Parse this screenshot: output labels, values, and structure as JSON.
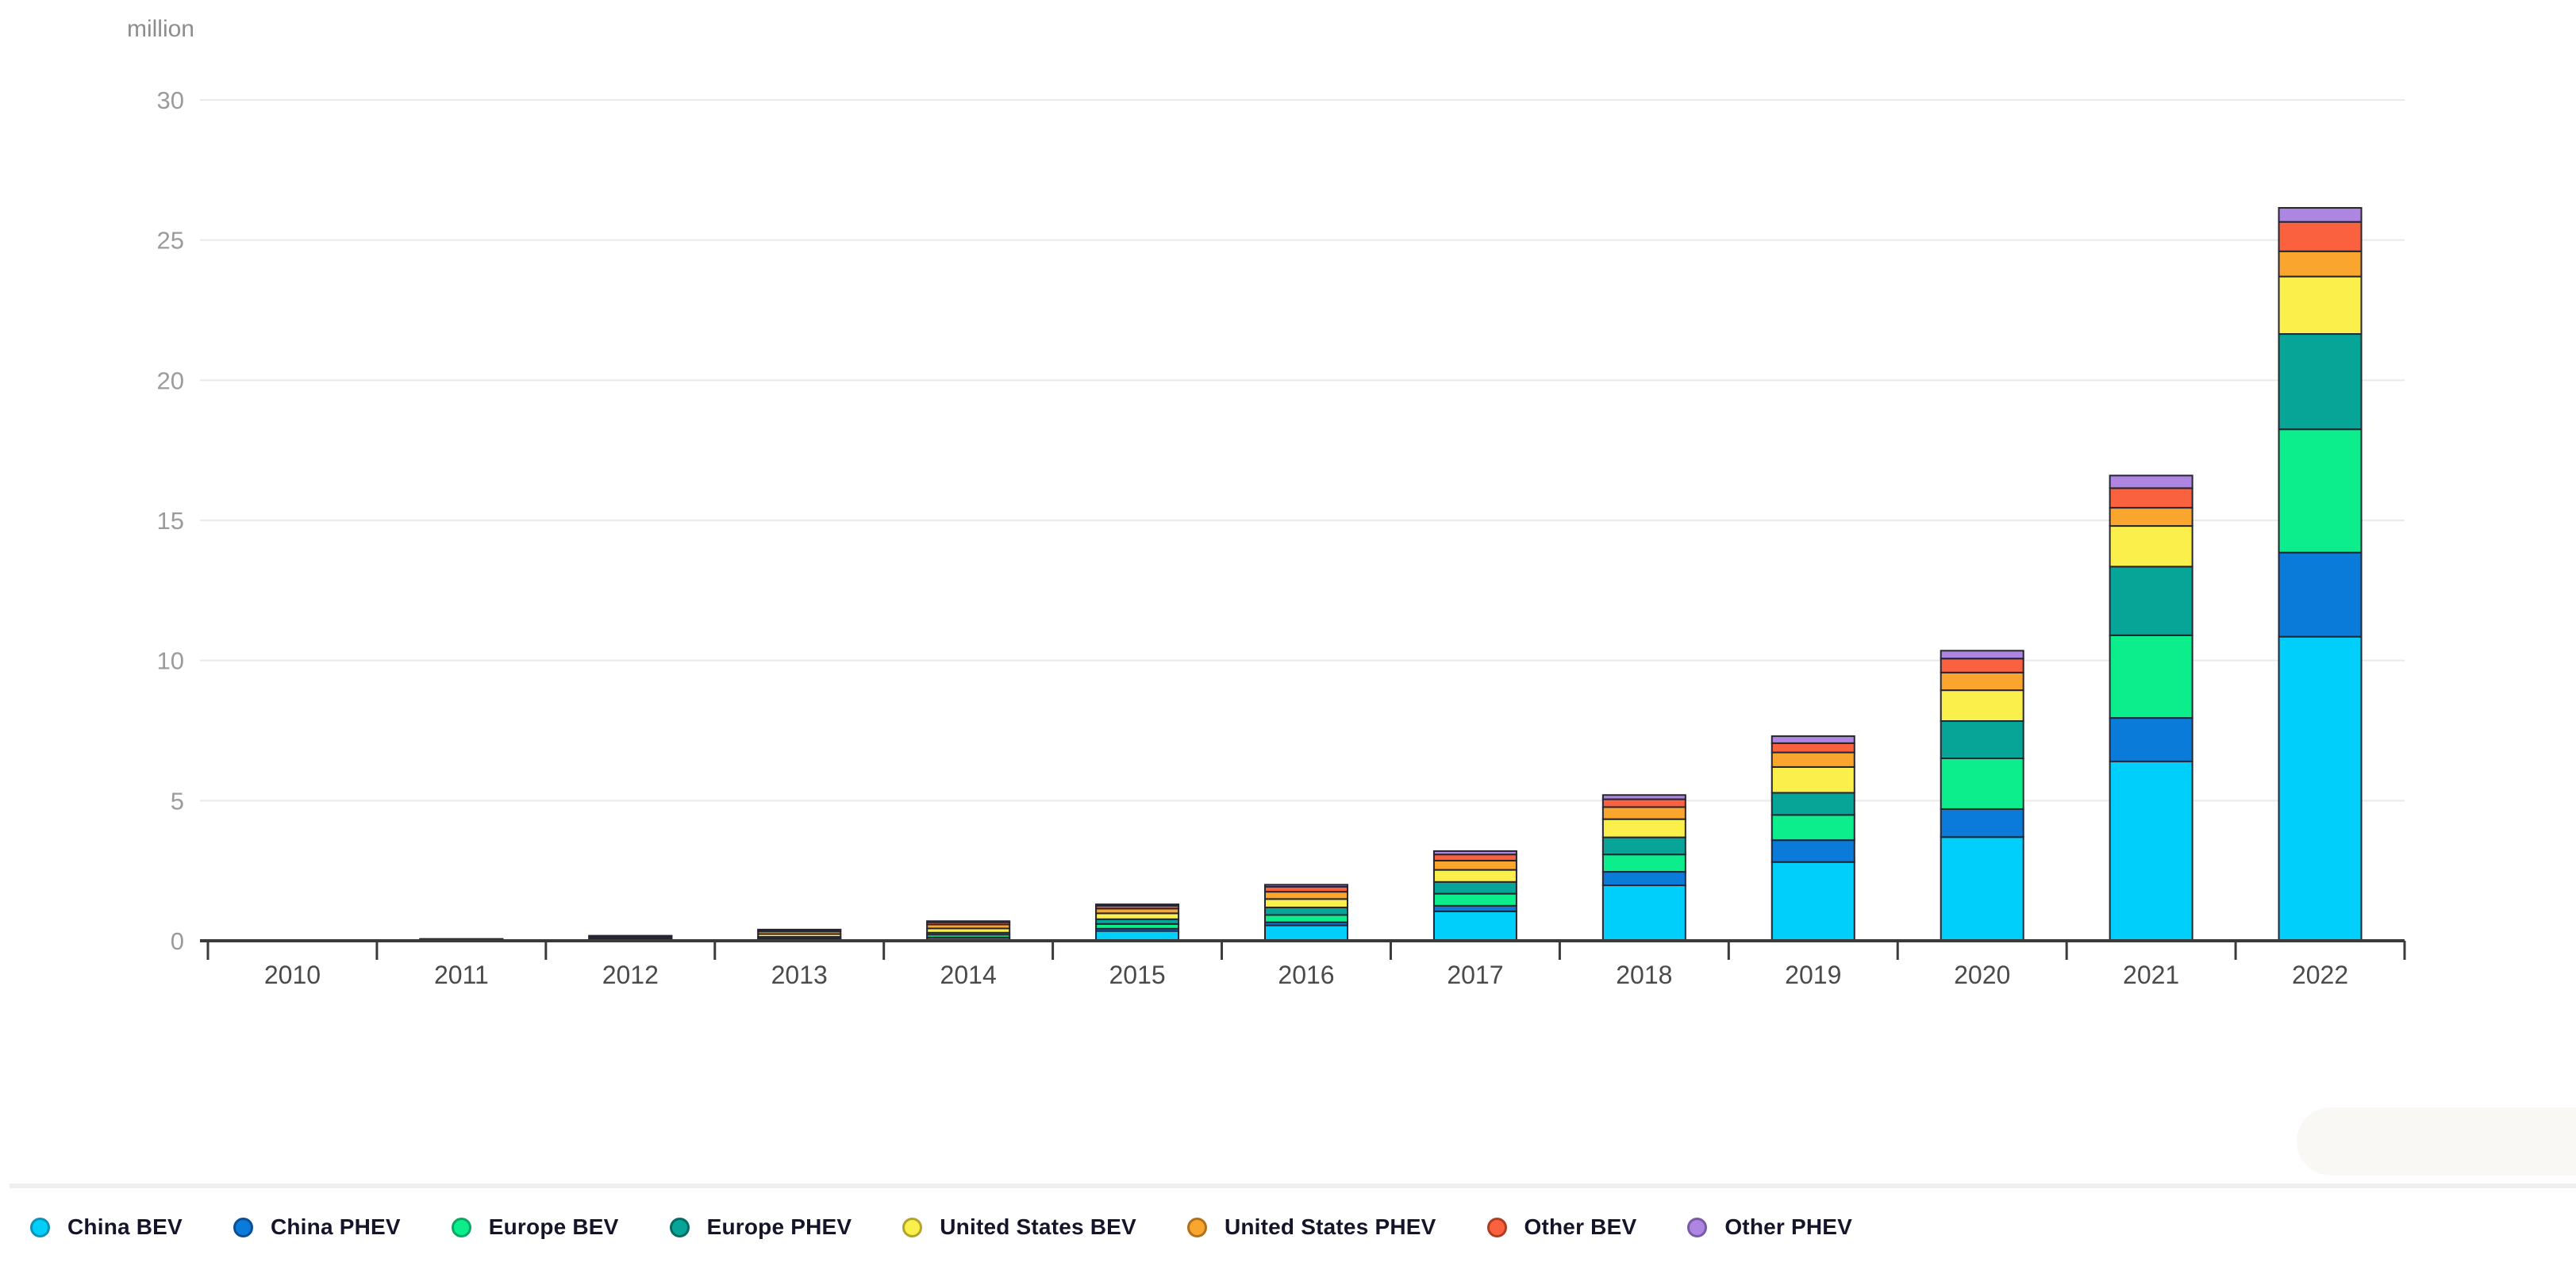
{
  "chart_data": {
    "type": "bar",
    "stacked": true,
    "title": "",
    "unit_label": "million",
    "xlabel": "",
    "ylabel": "million",
    "ylim": [
      0,
      30
    ],
    "yticks": [
      0,
      5,
      10,
      15,
      20,
      25,
      30
    ],
    "grid": true,
    "legend_position": "bottom",
    "categories": [
      "2010",
      "2011",
      "2012",
      "2013",
      "2014",
      "2015",
      "2016",
      "2017",
      "2018",
      "2019",
      "2020",
      "2021",
      "2022"
    ],
    "series": [
      {
        "name": "China BEV",
        "color": "#00CFFC",
        "border": "#0b93b5",
        "values": [
          0.01,
          0.01,
          0.02,
          0.05,
          0.1,
          0.35,
          0.55,
          1.05,
          1.98,
          2.81,
          3.7,
          6.4,
          10.85
        ]
      },
      {
        "name": "China PHEV",
        "color": "#0A7BD8",
        "border": "#0a4f96",
        "values": [
          0.0,
          0.0,
          0.0,
          0.01,
          0.02,
          0.08,
          0.11,
          0.2,
          0.48,
          0.78,
          1.0,
          1.55,
          3.0
        ]
      },
      {
        "name": "Europe BEV",
        "color": "#0BEE8B",
        "border": "#09a864",
        "values": [
          0.0,
          0.01,
          0.02,
          0.05,
          0.1,
          0.17,
          0.26,
          0.43,
          0.62,
          0.9,
          1.81,
          2.95,
          4.4
        ]
      },
      {
        "name": "Europe PHEV",
        "color": "#06A597",
        "border": "#046b62",
        "values": [
          0.0,
          0.005,
          0.01,
          0.03,
          0.07,
          0.17,
          0.27,
          0.42,
          0.61,
          0.79,
          1.33,
          2.45,
          3.4
        ]
      },
      {
        "name": "United States BEV",
        "color": "#FBF04B",
        "border": "#b3a42c",
        "values": [
          0.005,
          0.015,
          0.04,
          0.1,
          0.15,
          0.21,
          0.3,
          0.43,
          0.65,
          0.92,
          1.1,
          1.45,
          2.05
        ]
      },
      {
        "name": "United States PHEV",
        "color": "#FAA52E",
        "border": "#b0701c",
        "values": [
          0.0,
          0.01,
          0.05,
          0.09,
          0.14,
          0.17,
          0.26,
          0.33,
          0.43,
          0.52,
          0.63,
          0.65,
          0.9
        ]
      },
      {
        "name": "Other BEV",
        "color": "#F9613F",
        "border": "#b03c24",
        "values": [
          0.005,
          0.01,
          0.03,
          0.05,
          0.08,
          0.1,
          0.18,
          0.22,
          0.28,
          0.33,
          0.5,
          0.7,
          1.05
        ]
      },
      {
        "name": "Other PHEV",
        "color": "#AE85E0",
        "border": "#7a5aa5",
        "values": [
          0.0,
          0.005,
          0.01,
          0.02,
          0.04,
          0.05,
          0.07,
          0.12,
          0.15,
          0.25,
          0.28,
          0.45,
          0.5
        ]
      }
    ]
  },
  "style": {
    "grid_color": "#e9e9e9",
    "axis_color": "#3a3a3a",
    "segment_outline": "#262633",
    "y_label_color": "#9b9b9b",
    "x_label_color": "#4a4a4a",
    "unit_label_color": "#8d8d8d"
  }
}
